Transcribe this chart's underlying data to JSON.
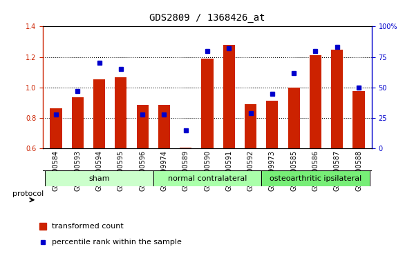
{
  "title": "GDS2809 / 1368426_at",
  "samples": [
    "GSM200584",
    "GSM200593",
    "GSM200594",
    "GSM200595",
    "GSM200596",
    "GSM199974",
    "GSM200589",
    "GSM200590",
    "GSM200591",
    "GSM200592",
    "GSM199973",
    "GSM200585",
    "GSM200586",
    "GSM200587",
    "GSM200588"
  ],
  "red_values": [
    0.865,
    0.935,
    1.055,
    1.065,
    0.885,
    0.885,
    0.605,
    1.19,
    1.28,
    0.89,
    0.915,
    1.0,
    1.21,
    1.25,
    0.975
  ],
  "blue_values": [
    28,
    47,
    70,
    65,
    28,
    28,
    15,
    80,
    82,
    29,
    45,
    62,
    80,
    83,
    50
  ],
  "groups": [
    {
      "label": "sham",
      "start": 0,
      "end": 5,
      "color": "#ccffcc"
    },
    {
      "label": "normal contralateral",
      "start": 5,
      "end": 10,
      "color": "#aaffaa"
    },
    {
      "label": "osteoarthritic ipsilateral",
      "start": 10,
      "end": 15,
      "color": "#77ee77"
    }
  ],
  "ylim_left": [
    0.6,
    1.4
  ],
  "ylim_right": [
    0,
    100
  ],
  "yticks_left": [
    0.6,
    0.8,
    1.0,
    1.2,
    1.4
  ],
  "yticks_right": [
    0,
    25,
    50,
    75,
    100
  ],
  "ytick_labels_right": [
    "0",
    "25",
    "50",
    "75",
    "100%"
  ],
  "bar_color": "#cc2200",
  "dot_color": "#0000cc",
  "plot_bg": "#ffffff",
  "legend_red": "transformed count",
  "legend_blue": "percentile rank within the sample",
  "protocol_label": "protocol",
  "left_axis_color": "#cc2200",
  "right_axis_color": "#0000cc",
  "title_fontsize": 10,
  "tick_fontsize": 7,
  "label_fontsize": 8,
  "bar_width": 0.55
}
